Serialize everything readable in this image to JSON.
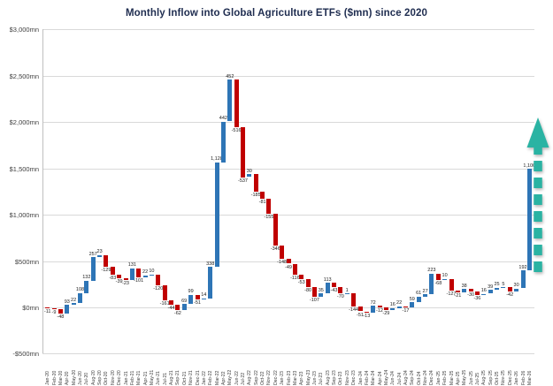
{
  "title": "Monthly Inflow into Global Agriculture ETFs ($mn) since 2020",
  "chart_data": {
    "type": "bar",
    "subtype": "waterfall",
    "title": "Monthly Inflow into Global Agriculture ETFs ($mn) since 2020",
    "xlabel": "",
    "ylabel": "",
    "ylim": [
      -500,
      3000
    ],
    "grid": true,
    "legend": "none",
    "positive_color": "#2E75B6",
    "negative_color": "#C00000",
    "arrow_color": "#2AB3A3",
    "y_tick_labels": [
      "$3,000mn",
      "$2,500mn",
      "$2,000mn",
      "$1,500mn",
      "$1,000mn",
      "$500mn",
      "$0mn",
      "-$500mn"
    ],
    "y_tick_values": [
      3000,
      2500,
      2000,
      1500,
      1000,
      500,
      0,
      -500
    ],
    "categories": [
      "Jan-20",
      "Feb-20",
      "Mar-20",
      "Apr-20",
      "May-20",
      "Jun-20",
      "Jul-20",
      "Aug-20",
      "Sep-20",
      "Oct-20",
      "Nov-20",
      "Dec-20",
      "Jan-21",
      "Feb-21",
      "Mar-21",
      "Apr-21",
      "May-21",
      "Jun-21",
      "Jul-21",
      "Aug-21",
      "Sep-21",
      "Oct-21",
      "Nov-21",
      "Dec-21",
      "Jan-22",
      "Feb-22",
      "Mar-22",
      "Apr-22",
      "May-22",
      "Jun-22",
      "Jul-22",
      "Aug-22",
      "Sep-22",
      "Oct-22",
      "Nov-22",
      "Dec-22",
      "Jan-23",
      "Feb-23",
      "Mar-23",
      "Apr-23",
      "May-23",
      "Jun-23",
      "Jul-23",
      "Aug-23",
      "Sep-23",
      "Oct-23",
      "Nov-23",
      "Dec-23",
      "Jan-24",
      "Feb-24",
      "Mar-24",
      "Apr-24",
      "May-24",
      "Jun-24",
      "Jul-24",
      "Aug-24",
      "Sep-24",
      "Oct-24",
      "Nov-24",
      "Dec-24",
      "Jan-25",
      "Feb-25",
      "Mar-25",
      "Apr-25",
      "May-25",
      "Jun-25",
      "Jul-25",
      "Aug-25",
      "Sep-25",
      "Oct-25",
      "Nov-25",
      "Dec-25",
      "Jan-26",
      "Feb-26",
      "Mar-26"
    ],
    "values": [
      -11,
      -9,
      -48,
      93,
      22,
      108,
      132,
      257,
      23,
      -129,
      -83,
      -39,
      -23,
      131,
      -101,
      22,
      10,
      -120,
      -161,
      -44,
      -62,
      69,
      99,
      -51,
      14,
      338,
      1128,
      442,
      452,
      -516,
      -537,
      30,
      -185,
      -81,
      -155,
      -346,
      -148,
      -49,
      -116,
      -53,
      -80,
      -107,
      35,
      113,
      -43,
      -70,
      1,
      -144,
      -51,
      -13,
      72,
      -12,
      -29,
      16,
      22,
      -17,
      59,
      61,
      27,
      223,
      -68,
      10,
      -127,
      -21,
      38,
      -30,
      -36,
      16,
      39,
      25,
      5,
      -42,
      30,
      192,
      1100
    ],
    "annotations": [
      {
        "name": "upward-trend-arrow",
        "style": "dashed-teal-arrow",
        "position": "right-of-last-bar"
      }
    ]
  }
}
